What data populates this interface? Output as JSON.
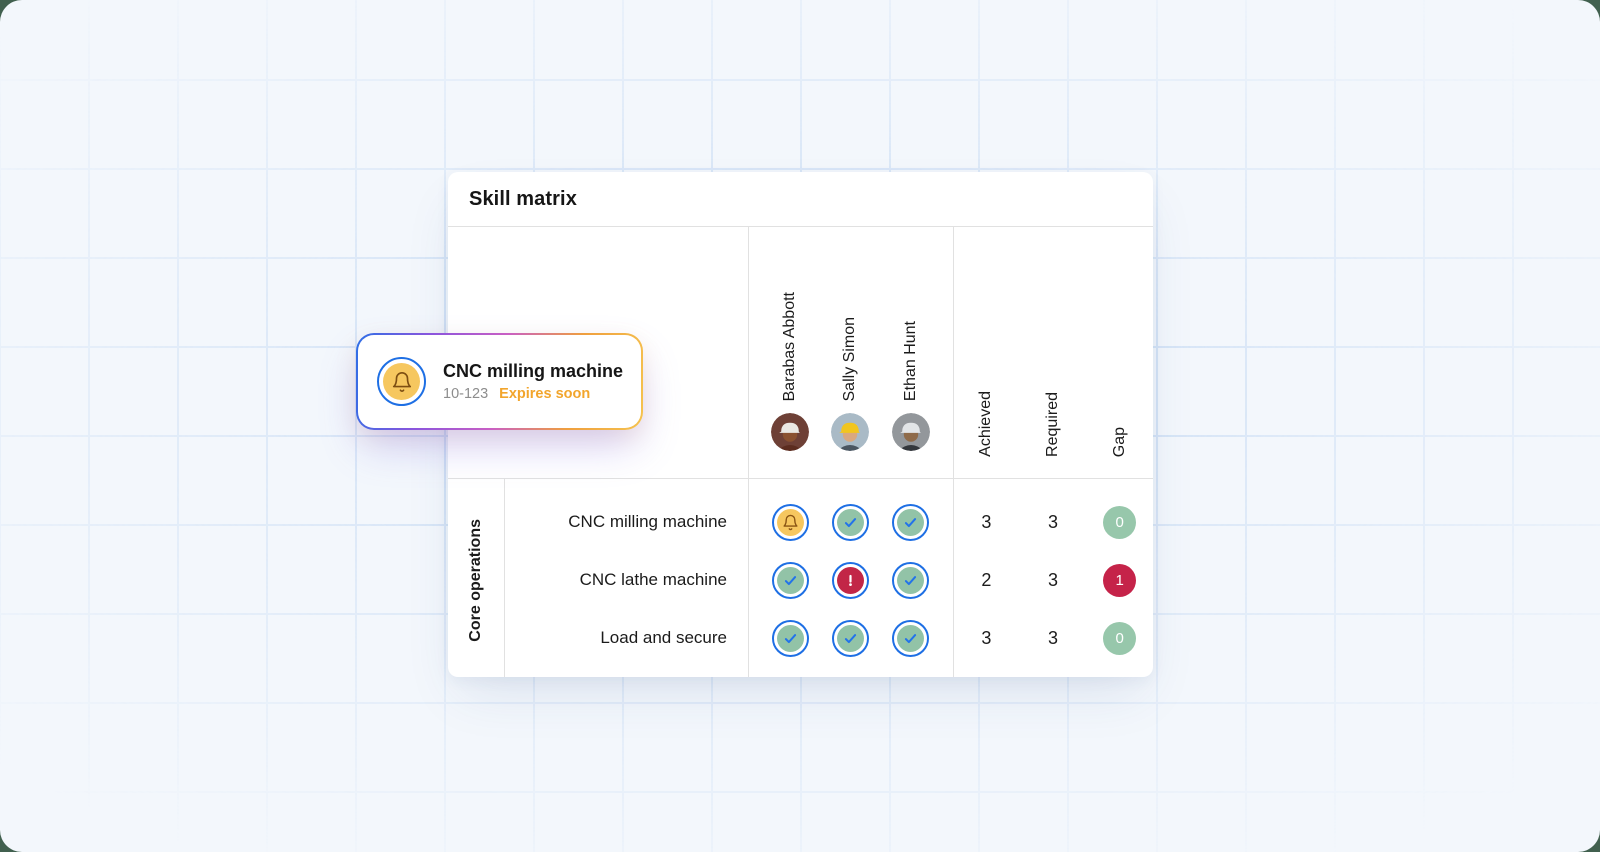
{
  "page": {
    "background": "#f3f7fc",
    "outer_background": "#41604f",
    "grid_line_color": "#c4d9f3"
  },
  "notification": {
    "icon": "bell-icon",
    "title": "CNC milling machine",
    "code": "10-123",
    "status_label": "Expires soon",
    "status_color": "#f2a52c",
    "border_gradient": [
      "#2e6fe6",
      "#8c55dd",
      "#c95fc4",
      "#ef9f3e",
      "#f5c34f"
    ]
  },
  "skill_matrix": {
    "title": "Skill matrix",
    "people": [
      {
        "name": "Barabas Abbott",
        "avatar_desc": "man-white-hard-hat",
        "avatar": {
          "bg": "#6e4036",
          "helmet": "#eae8e3",
          "skin": "#8a5130",
          "shirt": "#5c2c1f"
        }
      },
      {
        "name": "Sally Simon",
        "avatar_desc": "person-yellow-hard-hat",
        "avatar": {
          "bg": "#a9bac6",
          "helmet": "#f1c51f",
          "skin": "#d9a87f",
          "shirt": "#4a5560"
        }
      },
      {
        "name": "Ethan Hunt",
        "avatar_desc": "man-white-hard-hat-glasses",
        "avatar": {
          "bg": "#93979b",
          "helmet": "#e2e5e7",
          "skin": "#8f6b4a",
          "shirt": "#33373c"
        }
      }
    ],
    "metrics": [
      "Achieved",
      "Required",
      "Gap"
    ],
    "row_group_label": "Core operations",
    "rows": [
      {
        "skill": "CNC milling machine",
        "statuses": [
          "bell",
          "check",
          "check"
        ],
        "achieved": "3",
        "required": "3",
        "gap": "0",
        "gap_state": "ok"
      },
      {
        "skill": "CNC lathe machine",
        "statuses": [
          "check",
          "alert",
          "check"
        ],
        "achieved": "2",
        "required": "3",
        "gap": "1",
        "gap_state": "deficit"
      },
      {
        "skill": "Load and secure",
        "statuses": [
          "check",
          "check",
          "check"
        ],
        "achieved": "3",
        "required": "3",
        "gap": "0",
        "gap_state": "ok"
      }
    ],
    "status_colors": {
      "ring_blue": "#1e6fe4",
      "check_blue": "#2273ea",
      "ok_green": "#92c3a7",
      "alert_red": "#c22647",
      "bell_yellow": "#f6c75f",
      "bell_brown": "#8a5514"
    },
    "gap_colors": {
      "ok": "#97c7ab",
      "deficit": "#c52349"
    }
  }
}
